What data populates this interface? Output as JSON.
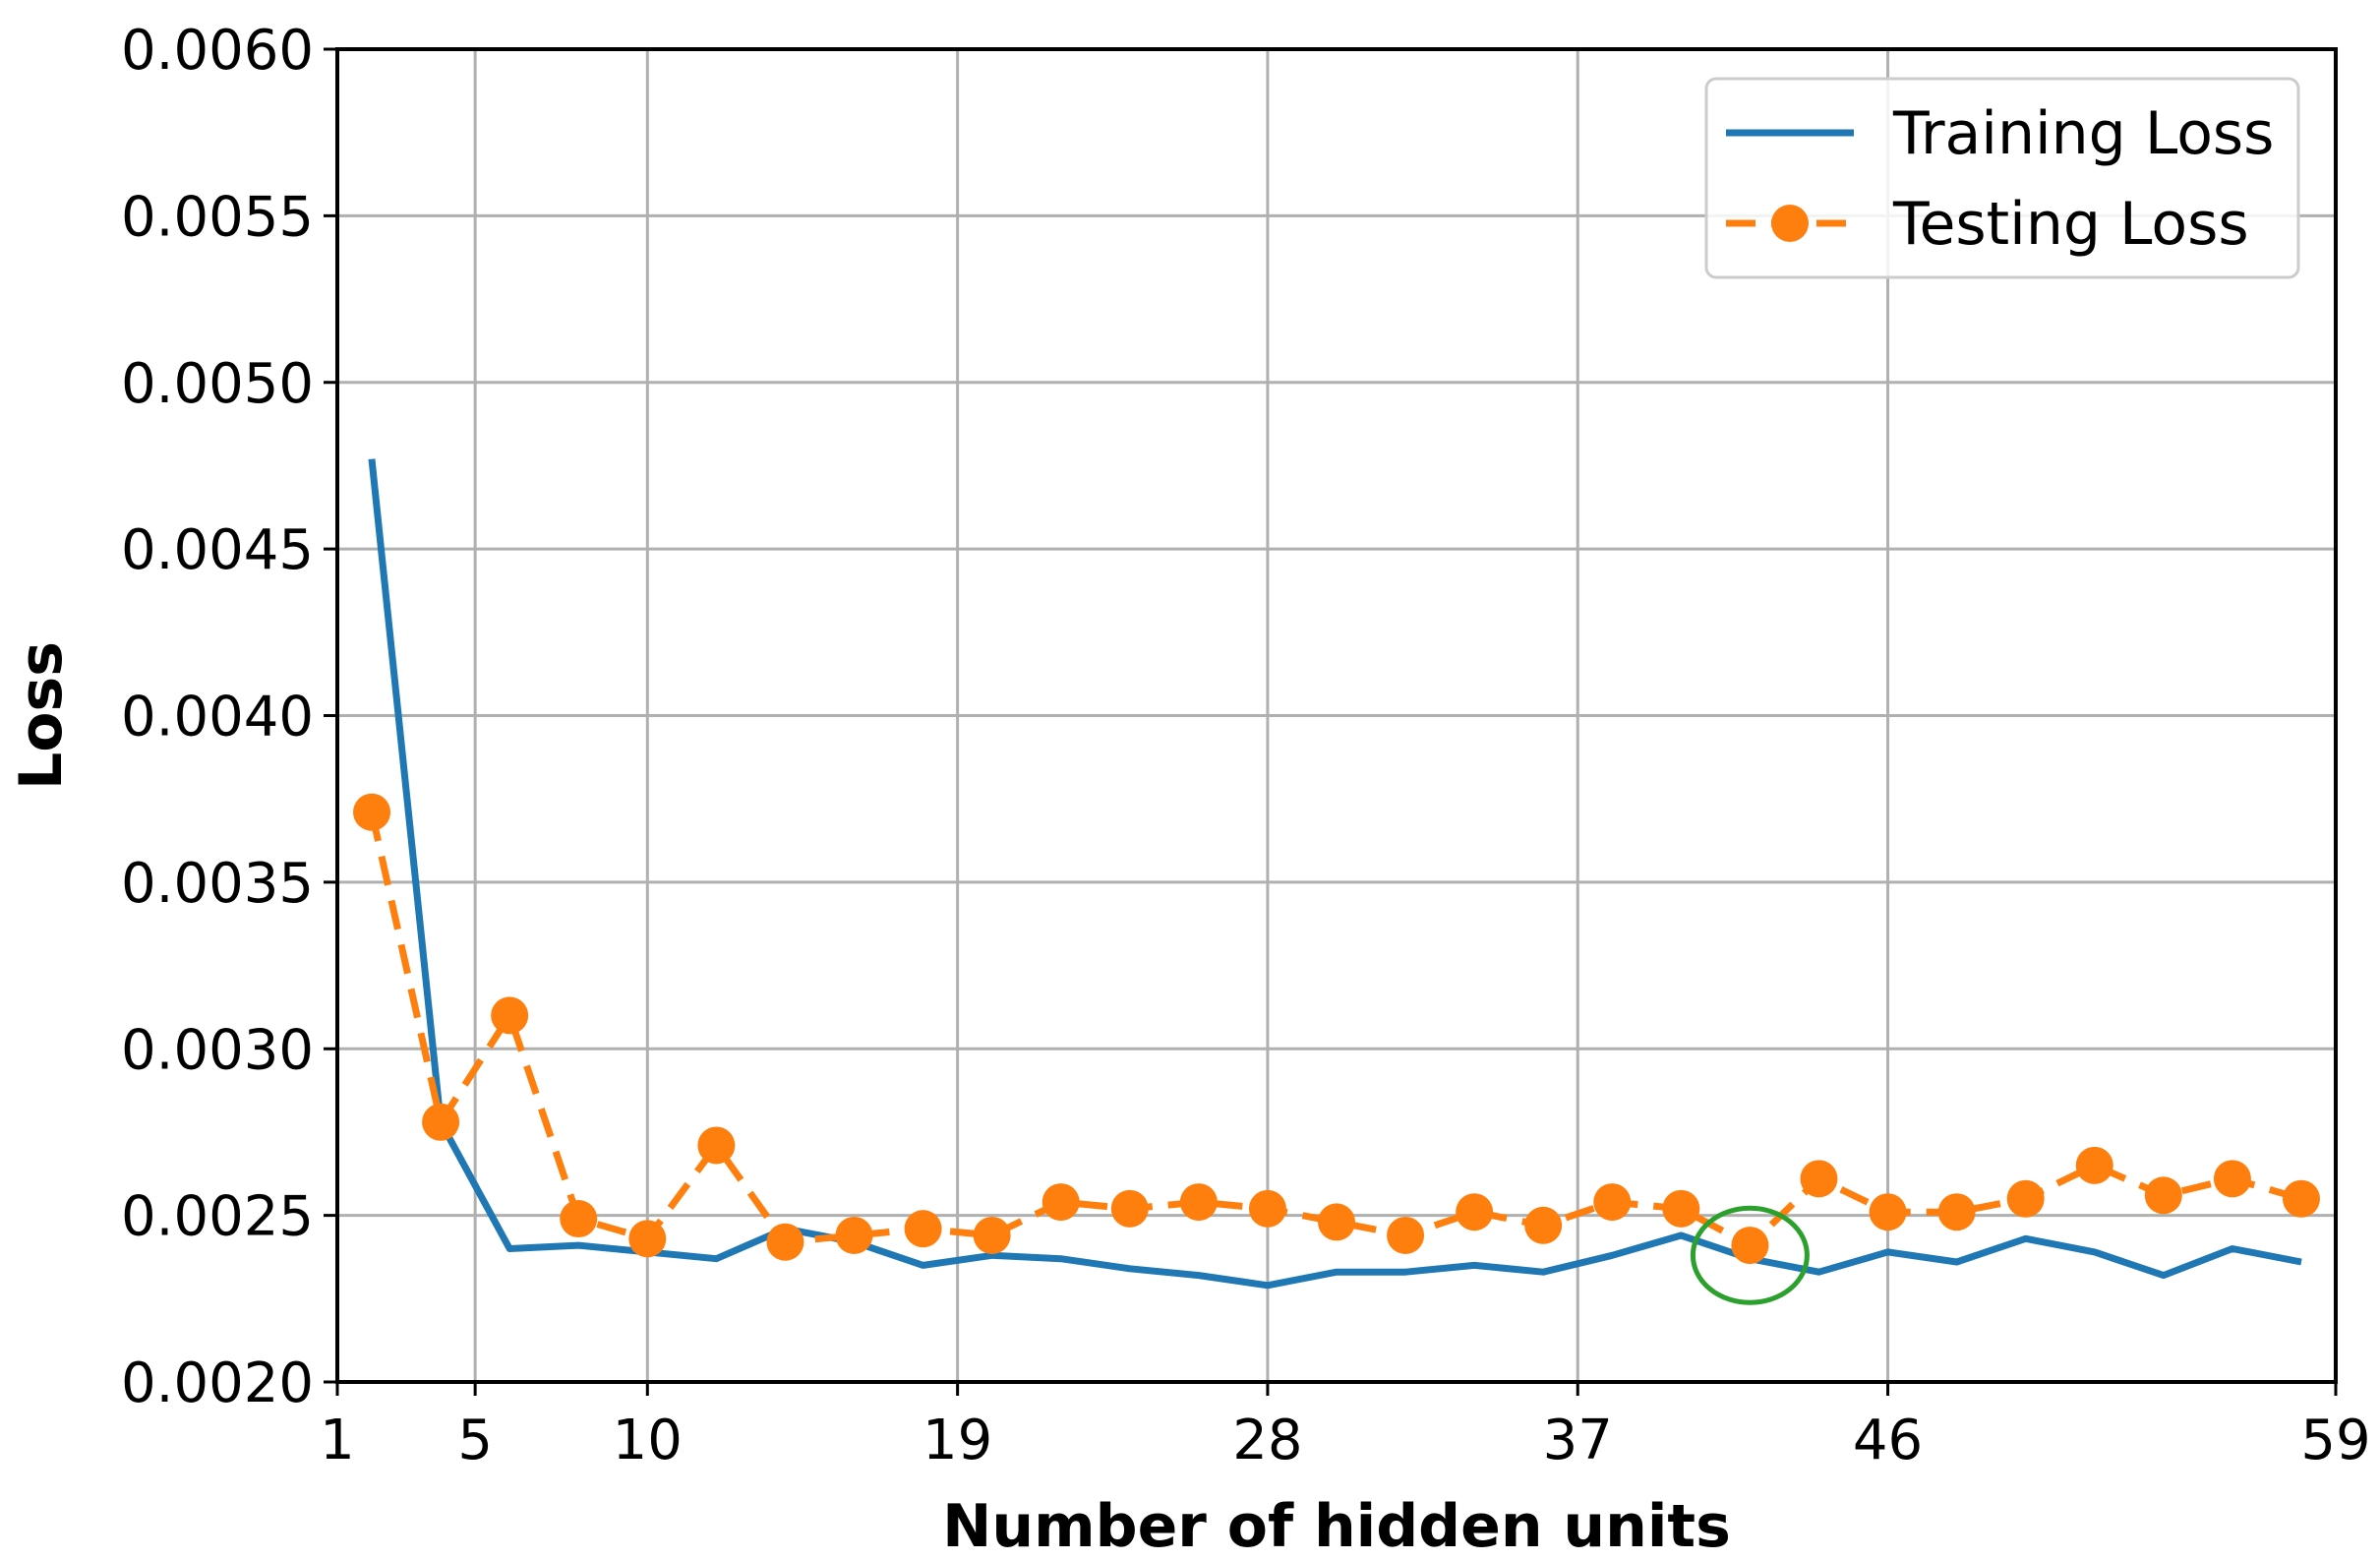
{
  "chart_data": {
    "type": "line",
    "title": "",
    "xlabel": "Number of hidden units",
    "ylabel": "Loss",
    "xlim": [
      1,
      59
    ],
    "ylim": [
      0.002,
      0.006
    ],
    "xticks": [
      1,
      5,
      10,
      19,
      28,
      37,
      46,
      59
    ],
    "xtick_labels": [
      "1",
      "5",
      "10",
      "19",
      "28",
      "37",
      "46",
      "59"
    ],
    "yticks": [
      0.002,
      0.0025,
      0.003,
      0.0035,
      0.004,
      0.0045,
      0.005,
      0.0055,
      0.006
    ],
    "ytick_labels": [
      "0.0020",
      "0.0025",
      "0.0030",
      "0.0035",
      "0.0040",
      "0.0045",
      "0.0050",
      "0.0055",
      "0.0060"
    ],
    "grid": true,
    "legend_position": "top-right",
    "x": [
      2,
      4,
      6,
      8,
      10,
      12,
      14,
      16,
      18,
      20,
      22,
      24,
      26,
      28,
      30,
      32,
      34,
      36,
      38,
      40,
      42,
      44,
      46,
      48,
      50,
      52,
      54,
      56,
      58
    ],
    "series": [
      {
        "name": "Training Loss",
        "color": "#1f77b4",
        "style": "solid",
        "values": [
          0.00477,
          0.00278,
          0.0024,
          0.00241,
          0.00239,
          0.00237,
          0.00246,
          0.00242,
          0.00235,
          0.00238,
          0.00237,
          0.00234,
          0.00232,
          0.00229,
          0.00233,
          0.00233,
          0.00235,
          0.00233,
          0.00238,
          0.00244,
          0.00237,
          0.00233,
          0.00239,
          0.00236,
          0.00243,
          0.00239,
          0.00232,
          0.0024,
          0.00236
        ]
      },
      {
        "name": "Testing Loss",
        "color": "#ff7f0e",
        "style": "dashed",
        "marker": "circle",
        "values": [
          0.00371,
          0.00278,
          0.0031,
          0.00249,
          0.00243,
          0.00271,
          0.00242,
          0.00244,
          0.00246,
          0.00244,
          0.00254,
          0.00252,
          0.00254,
          0.00252,
          0.00248,
          0.00244,
          0.00251,
          0.00247,
          0.00254,
          0.00252,
          0.00241,
          0.00261,
          0.00251,
          0.00251,
          0.00255,
          0.00265,
          0.00256,
          0.00261,
          0.00255
        ]
      }
    ],
    "annotation": {
      "shape": "ellipse",
      "color": "#2ca02c",
      "center": [
        42,
        0.00238
      ]
    }
  }
}
